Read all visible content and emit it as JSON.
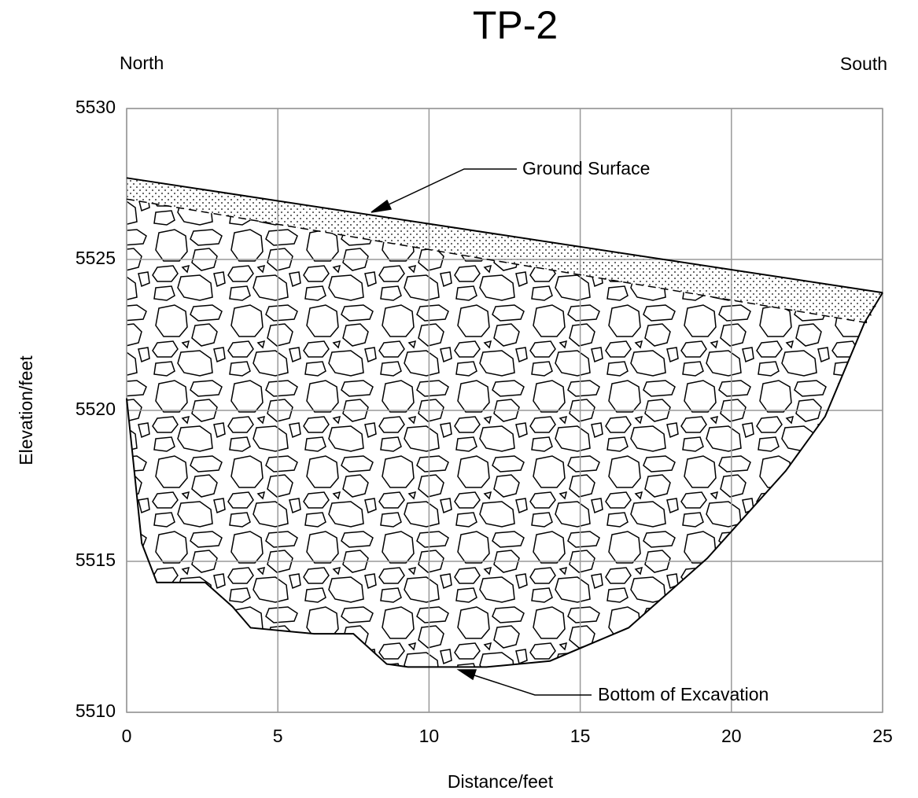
{
  "chart_data": {
    "type": "section",
    "title": "TP-2",
    "left_label": "North",
    "right_label": "South",
    "xlabel": "Distance/feet",
    "ylabel": "Elevation/feet",
    "xlim": [
      0,
      25
    ],
    "ylim": [
      5510,
      5530
    ],
    "xticks": [
      0,
      5,
      10,
      15,
      20,
      25
    ],
    "yticks": [
      5510,
      5515,
      5520,
      5525,
      5530
    ],
    "grid": true,
    "series": [
      {
        "x": [
          0,
          25
        ],
        "values": [
          5527.7,
          5523.9
        ]
      },
      {
        "x": [
          0,
          24.5
        ],
        "values": [
          5527.0,
          5522.9
        ]
      },
      {
        "x": [
          0,
          0.2,
          0.5,
          1.0,
          2.6,
          3.5,
          4.1,
          6.2,
          7.5,
          8.6,
          9.3,
          10.9,
          11.9,
          14.0,
          16.6,
          19.2,
          21.8,
          23.1,
          24.4,
          25
        ],
        "values": [
          5520.4,
          5518.5,
          5515.6,
          5514.3,
          5514.3,
          5513.5,
          5512.8,
          5512.6,
          5512.6,
          5511.6,
          5511.5,
          5511.5,
          5511.5,
          5511.7,
          5512.8,
          5515.1,
          5518.0,
          5519.8,
          5522.9,
          5523.9
        ]
      }
    ],
    "annotations": [
      {
        "text": "Ground Surface"
      },
      {
        "text": "Bottom of Excavation"
      }
    ]
  }
}
